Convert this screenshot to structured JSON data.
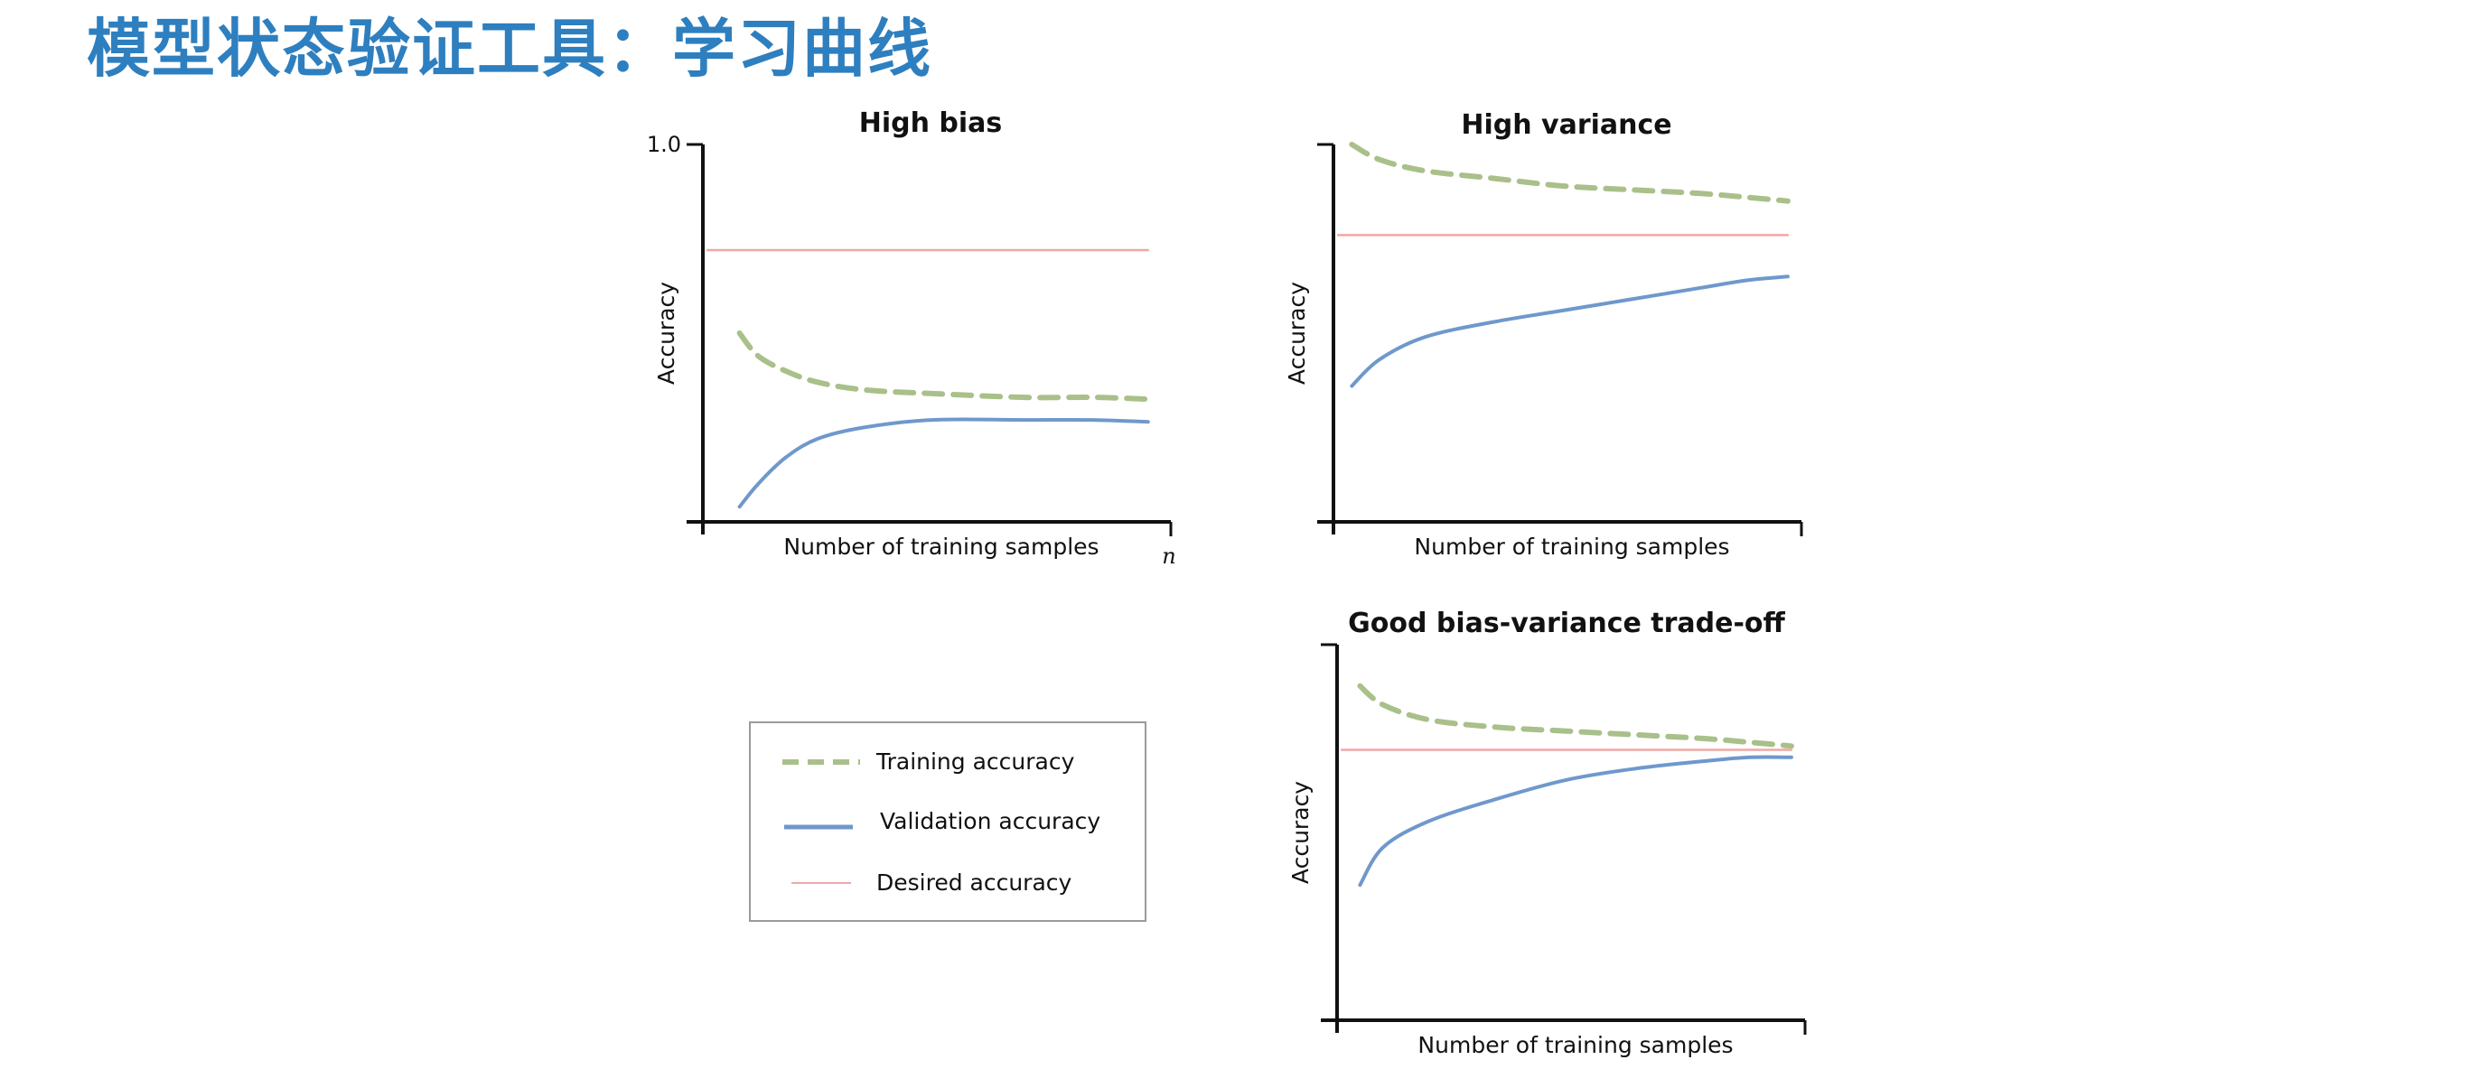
{
  "slide": {
    "title": "模型状态验证工具：学习曲线"
  },
  "colors": {
    "title": "#2e7fbf",
    "training": "#a9c08a",
    "validation": "#6f98cc",
    "desired": "#f0a7a7",
    "axis": "#111111"
  },
  "legend": {
    "entries": [
      {
        "key": "training",
        "label": "Training accuracy",
        "style": "dashed"
      },
      {
        "key": "validation",
        "label": "Validation accuracy",
        "style": "solid-thick"
      },
      {
        "key": "desired",
        "label": "Desired accuracy",
        "style": "solid-thin"
      }
    ]
  },
  "chart_data": [
    {
      "type": "line",
      "title": "High bias",
      "xlabel": "Number of training samples",
      "ylabel": "Accuracy",
      "y_tick_label": "1.0",
      "x_end_label": "n",
      "xlim": [
        0,
        1
      ],
      "ylim": [
        0,
        1
      ],
      "grid": false,
      "x": [
        0.08,
        0.12,
        0.18,
        0.25,
        0.35,
        0.5,
        0.7,
        0.85,
        0.97
      ],
      "series": [
        {
          "name": "Training accuracy",
          "values": [
            0.5,
            0.44,
            0.4,
            0.37,
            0.35,
            0.34,
            0.33,
            0.33,
            0.325
          ]
        },
        {
          "name": "Validation accuracy",
          "values": [
            0.04,
            0.1,
            0.17,
            0.22,
            0.25,
            0.27,
            0.27,
            0.27,
            0.265
          ]
        },
        {
          "name": "Desired accuracy",
          "values": [
            0.72,
            0.72,
            0.72,
            0.72,
            0.72,
            0.72,
            0.72,
            0.72,
            0.72
          ]
        }
      ]
    },
    {
      "type": "line",
      "title": "High variance",
      "xlabel": "Number of training samples",
      "ylabel": "Accuracy",
      "xlim": [
        0,
        1
      ],
      "ylim": [
        0,
        1
      ],
      "grid": false,
      "x": [
        0.04,
        0.1,
        0.2,
        0.35,
        0.5,
        0.65,
        0.8,
        0.9,
        0.99
      ],
      "series": [
        {
          "name": "Training accuracy",
          "values": [
            1.0,
            0.96,
            0.93,
            0.91,
            0.89,
            0.88,
            0.87,
            0.86,
            0.85
          ]
        },
        {
          "name": "Validation accuracy",
          "values": [
            0.36,
            0.43,
            0.49,
            0.53,
            0.56,
            0.59,
            0.62,
            0.64,
            0.65
          ]
        },
        {
          "name": "Desired accuracy",
          "values": [
            0.76,
            0.76,
            0.76,
            0.76,
            0.76,
            0.76,
            0.76,
            0.76,
            0.76
          ]
        }
      ]
    },
    {
      "type": "line",
      "title": "Good bias-variance trade-off",
      "xlabel": "Number of training samples",
      "ylabel": "Accuracy",
      "xlim": [
        0,
        1
      ],
      "ylim": [
        0,
        1
      ],
      "grid": false,
      "x": [
        0.05,
        0.1,
        0.2,
        0.35,
        0.5,
        0.65,
        0.8,
        0.9,
        0.99
      ],
      "series": [
        {
          "name": "Training accuracy",
          "values": [
            0.89,
            0.84,
            0.8,
            0.78,
            0.77,
            0.76,
            0.75,
            0.74,
            0.73
          ]
        },
        {
          "name": "Validation accuracy",
          "values": [
            0.36,
            0.46,
            0.53,
            0.59,
            0.64,
            0.67,
            0.69,
            0.7,
            0.7
          ]
        },
        {
          "name": "Desired accuracy",
          "values": [
            0.72,
            0.72,
            0.72,
            0.72,
            0.72,
            0.72,
            0.72,
            0.72,
            0.72
          ]
        }
      ]
    }
  ]
}
